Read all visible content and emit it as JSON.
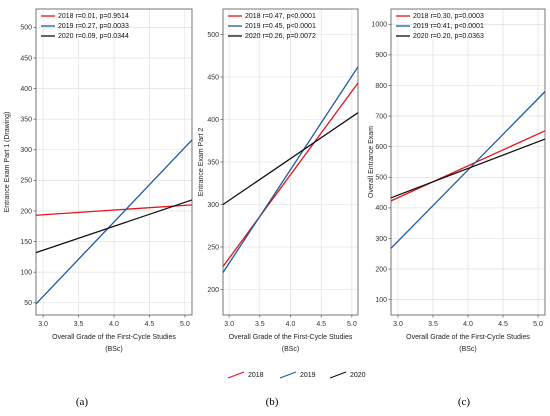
{
  "chart_data": [
    {
      "type": "line",
      "panel_label": "(a)",
      "xlabel": "Overall Grade of the First-Cycle Studies",
      "xlabel2": "(BSc)",
      "ylabel": "Entrance Exam Part 1 (Drawing)",
      "xlim": [
        2.9,
        5.1
      ],
      "ylim": [
        30,
        530
      ],
      "xticks": [
        "3.0",
        "3.5",
        "4.0",
        "4.5",
        "5.0"
      ],
      "yticks": [
        "50",
        "100",
        "150",
        "200",
        "250",
        "300",
        "350",
        "400",
        "450",
        "500"
      ],
      "legend_position": "top-left",
      "series": [
        {
          "name": "2018 r=0.01, p=0.9514",
          "color": "#e3141c",
          "x": [
            2.9,
            5.1
          ],
          "y": [
            193,
            210
          ]
        },
        {
          "name": "2019 r=0.27, p=0.0033",
          "color": "#1e5a9c",
          "x": [
            2.9,
            5.1
          ],
          "y": [
            48,
            316
          ]
        },
        {
          "name": "2020 r=0.09, p=0.0344",
          "color": "#111111",
          "x": [
            2.9,
            5.1
          ],
          "y": [
            132,
            218
          ]
        }
      ]
    },
    {
      "type": "line",
      "panel_label": "(b)",
      "xlabel": "Overall Grade of the First-Cycle Studies",
      "xlabel2": "(BSc)",
      "ylabel": "Entrance Exam Part 2",
      "xlim": [
        2.9,
        5.1
      ],
      "ylim": [
        170,
        530
      ],
      "xticks": [
        "3.0",
        "3.5",
        "4.0",
        "4.5",
        "5.0"
      ],
      "yticks": [
        "200",
        "250",
        "300",
        "350",
        "400",
        "450",
        "500"
      ],
      "legend_position": "top-left",
      "series": [
        {
          "name": "2018 r=0.47, p<0.0001",
          "color": "#e3141c",
          "x": [
            2.9,
            5.1
          ],
          "y": [
            227,
            443
          ]
        },
        {
          "name": "2019 r=0.45, p<0.0001",
          "color": "#1e5a9c",
          "x": [
            2.9,
            5.1
          ],
          "y": [
            220,
            462
          ]
        },
        {
          "name": "2020 r=0.26, p=0.0072",
          "color": "#111111",
          "x": [
            2.9,
            5.1
          ],
          "y": [
            300,
            408
          ]
        }
      ]
    },
    {
      "type": "line",
      "panel_label": "(c)",
      "xlabel": "Overall Grade of the First-Cycle Studies",
      "xlabel2": "(BSc)",
      "ylabel": "Overall Entrance Exam",
      "xlim": [
        2.9,
        5.1
      ],
      "ylim": [
        50,
        1050
      ],
      "xticks": [
        "3.0",
        "3.5",
        "4.0",
        "4.5",
        "5.0"
      ],
      "yticks": [
        "100",
        "200",
        "300",
        "400",
        "500",
        "600",
        "700",
        "800",
        "900",
        "1000"
      ],
      "legend_position": "top-left",
      "series": [
        {
          "name": "2018 r=0.30, p=0.0003",
          "color": "#e3141c",
          "x": [
            2.9,
            5.1
          ],
          "y": [
            423,
            652
          ]
        },
        {
          "name": "2019 r=0.41, p<0.0001",
          "color": "#1e5a9c",
          "x": [
            2.9,
            5.1
          ],
          "y": [
            268,
            780
          ]
        },
        {
          "name": "2020 r=0.20, p=0.0363",
          "color": "#111111",
          "x": [
            2.9,
            5.1
          ],
          "y": [
            433,
            625
          ]
        }
      ]
    }
  ],
  "bottom_legend": [
    {
      "name": "2018",
      "color": "#e3141c"
    },
    {
      "name": "2019",
      "color": "#1e5a9c"
    },
    {
      "name": "2020",
      "color": "#111111"
    }
  ]
}
